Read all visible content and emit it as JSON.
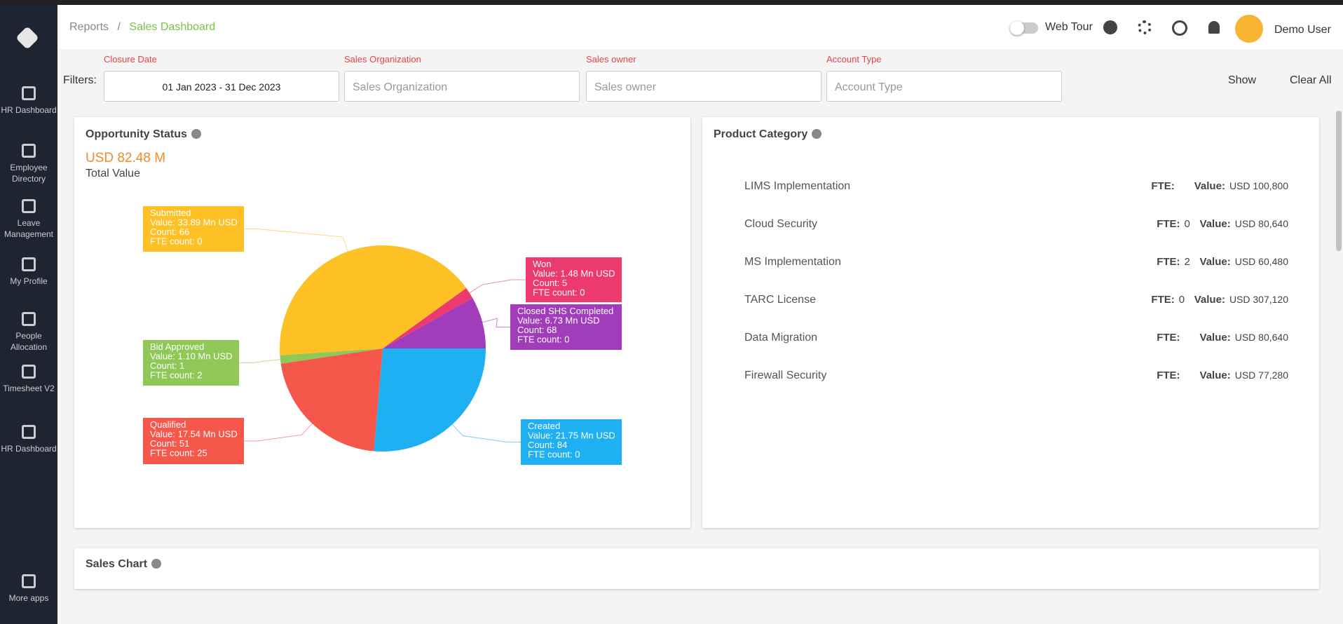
{
  "header": {
    "breadcrumb": [
      "Reports",
      "Sales Dashboard"
    ],
    "separator": "/",
    "web_tour": "Web Tour",
    "user": "Demo User"
  },
  "sidebar": [
    "HR Dashboard",
    "Employee Directory",
    "Leave Management",
    "My Profile",
    "People Allocation",
    "Timesheet V2",
    "HR Dashboard",
    "More apps"
  ],
  "filters": {
    "label": "Filters:",
    "fields": [
      {
        "label": "Closure Date",
        "value": "01 Jan 2023 - 31 Dec 2023"
      },
      {
        "label": "Sales Organization",
        "placeholder": "Sales Organization"
      },
      {
        "label": "Sales owner",
        "placeholder": "Sales owner"
      },
      {
        "label": "Account Type",
        "placeholder": "Account Type"
      }
    ],
    "show": "Show",
    "clear": "Clear All"
  },
  "opportunity": {
    "title": "Opportunity Status",
    "total": "USD 82.48 M",
    "total_label": "Total Value"
  },
  "chart_data": {
    "type": "pie",
    "categories": [
      "Created",
      "Qualified",
      "Bid Approved",
      "Submitted",
      "Won",
      "Closed SHS Completed"
    ],
    "values": [
      21.75,
      17.54,
      1.1,
      33.89,
      1.48,
      6.73
    ],
    "value_labels": [
      "Value: 21.75 Mn USD",
      "Value: 17.54 Mn USD",
      "Value: 1.10 Mn USD",
      "Value: 33.89 Mn USD",
      "Value: 1.48 Mn USD",
      "Value: 6.73 Mn USD"
    ],
    "count_labels": [
      "Count: 84",
      "Count: 51",
      "Count: 1",
      "Count: 66",
      "Count: 5",
      "Count: 68"
    ],
    "fte_labels": [
      "FTE count: 0",
      "FTE count: 25",
      "FTE count: 2",
      "FTE count: 0",
      "FTE count: 0",
      "FTE count: 0"
    ],
    "colors": [
      "#1eb0f2",
      "#f5574b",
      "#8fc856",
      "#fdc126",
      "#ec3a6e",
      "#a13dbb"
    ]
  },
  "product": {
    "title": "Product Category",
    "fte_label": "FTE:",
    "value_label": "Value:",
    "rows": [
      {
        "name": "LIMS Implementation",
        "value": "USD 100,800"
      },
      {
        "name": "Cloud Security",
        "fte": 0,
        "value": "USD 80,640"
      },
      {
        "name": "MS Implementation",
        "fte": 2,
        "value": "USD 60,480"
      },
      {
        "name": "TARC License",
        "fte": 0,
        "value": "USD 307,120"
      },
      {
        "name": "Data Migration",
        "value": "USD 80,640"
      },
      {
        "name": "Firewall Security",
        "value": "USD 77,280"
      }
    ]
  },
  "sales_chart": {
    "title": "Sales Chart"
  }
}
